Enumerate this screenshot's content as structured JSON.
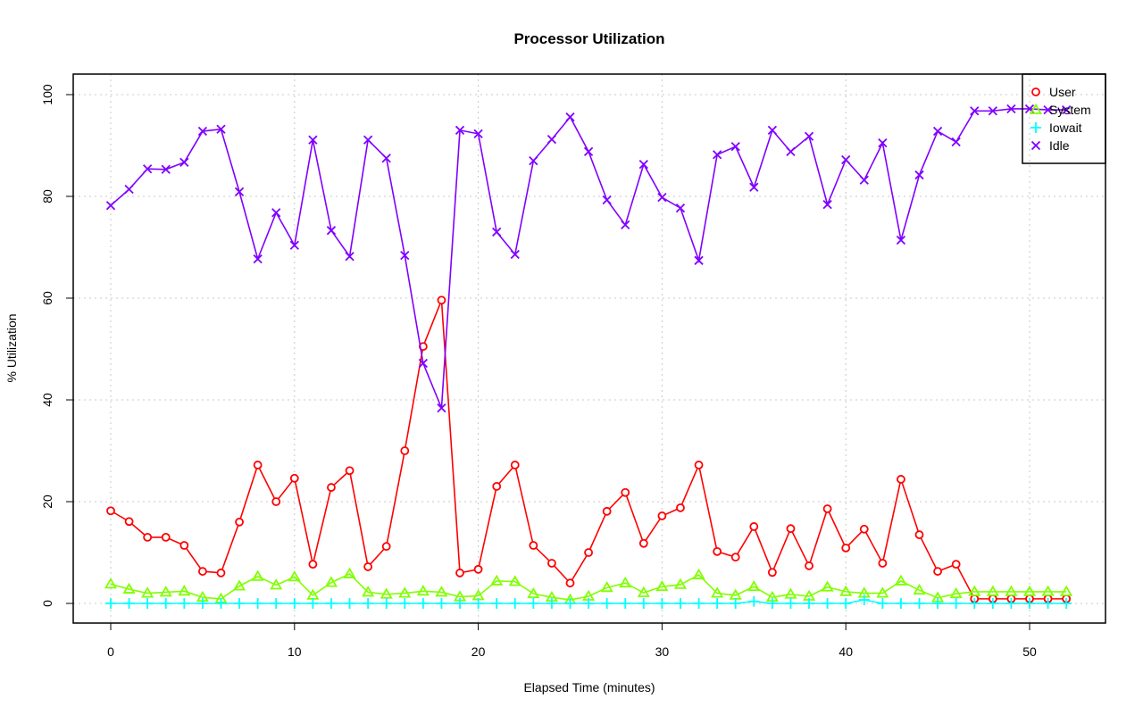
{
  "chart_data": {
    "type": "line",
    "title": "Processor Utilization",
    "xlabel": "Elapsed Time (minutes)",
    "ylabel": "% Utilization",
    "xlim": [
      -2,
      54
    ],
    "ylim": [
      -4,
      104
    ],
    "xticks": [
      0,
      10,
      20,
      30,
      40,
      50
    ],
    "yticks": [
      0,
      20,
      40,
      60,
      80,
      100
    ],
    "grid": true,
    "legend_position": "top-right",
    "x": [
      0,
      1,
      2,
      3,
      4,
      5,
      6,
      7,
      8,
      9,
      10,
      11,
      12,
      13,
      14,
      15,
      16,
      17,
      18,
      19,
      20,
      21,
      22,
      23,
      24,
      25,
      26,
      27,
      28,
      29,
      30,
      31,
      32,
      33,
      34,
      35,
      36,
      37,
      38,
      39,
      40,
      41,
      42,
      43,
      44,
      45,
      46,
      47,
      48,
      49,
      50,
      51,
      52
    ],
    "series": [
      {
        "name": "User",
        "color": "#ff0000",
        "marker": "circle",
        "values": [
          18.2,
          16.1,
          13,
          13,
          11.4,
          6.3,
          6,
          16,
          27.2,
          20,
          24.6,
          7.7,
          22.8,
          26.1,
          7.2,
          11.2,
          30,
          50.5,
          59.6,
          6,
          6.7,
          23,
          27.2,
          11.4,
          7.9,
          4,
          10,
          18.1,
          21.8,
          11.8,
          17.2,
          18.8,
          27.2,
          10.2,
          9.1,
          15.1,
          6.1,
          14.7,
          7.4,
          18.6,
          10.9,
          14.6,
          7.9,
          24.4,
          13.5,
          6.3,
          7.7,
          0.9,
          0.9,
          0.9,
          0.9,
          0.9,
          0.9
        ]
      },
      {
        "name": "System",
        "color": "#80ff00",
        "marker": "triangle",
        "values": [
          3.8,
          2.8,
          2,
          2.2,
          2.4,
          1.2,
          0.9,
          3.4,
          5.3,
          3.6,
          5.2,
          1.6,
          4.1,
          5.8,
          2.2,
          1.8,
          2,
          2.4,
          2.2,
          1.3,
          1.5,
          4.4,
          4.3,
          1.9,
          1.2,
          0.7,
          1.4,
          3.1,
          4,
          2.1,
          3.3,
          3.7,
          5.6,
          2,
          1.6,
          3.3,
          1.2,
          1.8,
          1.4,
          3.2,
          2.3,
          2,
          2,
          4.4,
          2.6,
          1.1,
          1.9,
          2.3,
          2.3,
          2.3,
          2.3,
          2.3,
          2.3
        ]
      },
      {
        "name": "Iowait",
        "color": "#00ffff",
        "marker": "plus",
        "values": [
          0,
          0,
          0,
          0,
          0,
          0,
          0,
          0,
          0,
          0,
          0,
          0,
          0,
          0,
          0,
          0,
          0,
          0,
          0,
          0,
          0,
          0,
          0,
          0,
          0,
          0,
          0,
          0,
          0,
          0,
          0,
          0,
          0,
          0,
          0,
          0.4,
          0,
          0,
          0,
          0,
          0,
          0.7,
          0,
          0,
          0,
          0,
          0,
          0,
          0,
          0,
          0,
          0,
          0
        ]
      },
      {
        "name": "Idle",
        "color": "#8000ff",
        "marker": "cross",
        "values": [
          78.2,
          81.4,
          85.4,
          85.3,
          86.7,
          92.8,
          93.2,
          80.9,
          67.7,
          76.8,
          70.4,
          91.1,
          73.3,
          68.2,
          91.1,
          87.5,
          68.4,
          47.2,
          38.4,
          93,
          92.3,
          73,
          68.6,
          87,
          91.2,
          95.6,
          88.8,
          79.3,
          74.4,
          86.3,
          79.8,
          77.7,
          67.4,
          88.2,
          89.8,
          81.8,
          93,
          88.8,
          91.8,
          78.4,
          87.2,
          83.2,
          90.5,
          71.4,
          84.2,
          92.8,
          90.7,
          96.8,
          96.8,
          97.2,
          97.2,
          97,
          97
        ]
      }
    ]
  }
}
